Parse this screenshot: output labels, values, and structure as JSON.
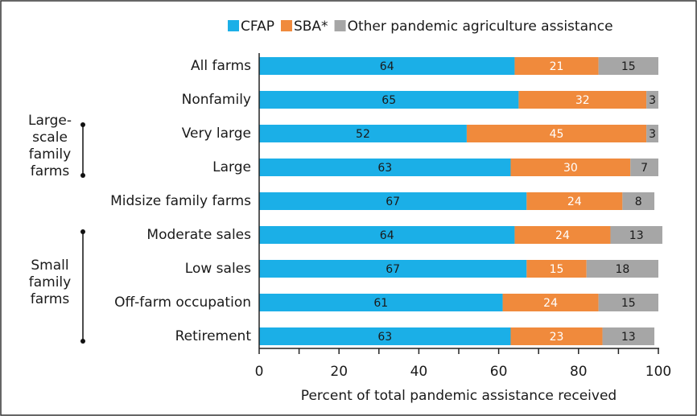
{
  "chart_data": {
    "type": "stacked-bar-horizontal",
    "categories": [
      "All farms",
      "Nonfamily",
      "Very large",
      "Large",
      "Midsize family farms",
      "Moderate sales",
      "Low sales",
      "Off-farm occupation",
      "Retirement"
    ],
    "series": [
      {
        "name": "CFAP",
        "color": "#1bafe7",
        "values": [
          64,
          65,
          52,
          63,
          67,
          64,
          67,
          61,
          63
        ]
      },
      {
        "name": "SBA*",
        "color": "#f08a3c",
        "values": [
          21,
          32,
          45,
          30,
          24,
          24,
          15,
          24,
          23
        ]
      },
      {
        "name": "Other pandemic agriculture assistance",
        "color": "#a6a6a6",
        "values": [
          15,
          3,
          3,
          7,
          8,
          13,
          18,
          15,
          13
        ]
      }
    ],
    "groups": [
      {
        "lines": [
          "Large-",
          "scale",
          "family",
          "farms"
        ]
      },
      {
        "lines": [
          "Small",
          "family",
          "farms"
        ]
      }
    ],
    "xlabel": "Percent of total pandemic assistance received",
    "xlim": [
      0,
      100
    ],
    "xticks": [
      0,
      20,
      40,
      60,
      80,
      100
    ],
    "xminorticks": [
      10,
      30,
      50,
      70,
      90
    ]
  }
}
